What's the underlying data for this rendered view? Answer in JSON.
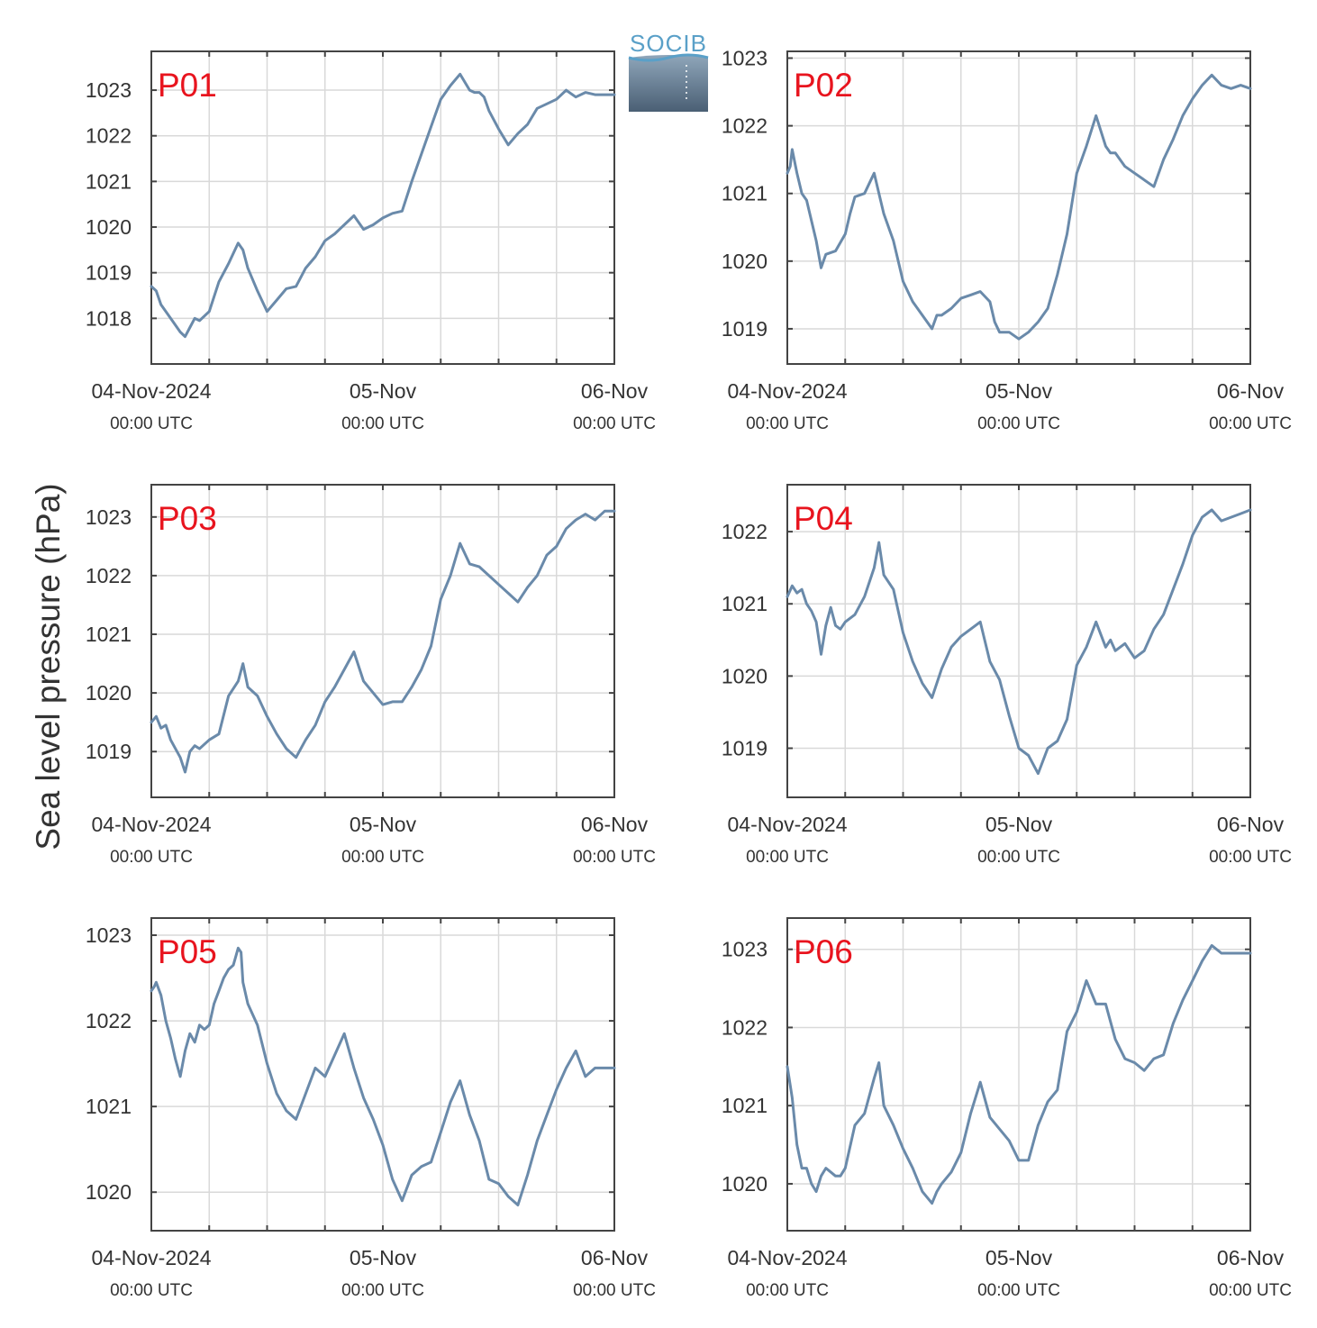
{
  "figure": {
    "ylabel": "Sea level pressure (hPa)",
    "logo": "SOCIB",
    "line_color": "#6a8aaa",
    "label_color": "#e8141e"
  },
  "chart_data": [
    {
      "type": "line",
      "panel": "P01",
      "title": "P01",
      "xlim": [
        0,
        48
      ],
      "ylim": [
        1017.0,
        1023.85
      ],
      "yticks": [
        1018,
        1019,
        1020,
        1021,
        1022,
        1023
      ],
      "xticklabels": [
        {
          "x": 0,
          "date": "04-Nov-2024",
          "time": "00:00 UTC"
        },
        {
          "x": 24,
          "date": "05-Nov",
          "time": "00:00 UTC"
        },
        {
          "x": 48,
          "date": "06-Nov",
          "time": "00:00 UTC"
        }
      ],
      "x": [
        0,
        0.5,
        1,
        2,
        3,
        3.5,
        4,
        4.5,
        5,
        6,
        7,
        8,
        9,
        9.5,
        10,
        11,
        12,
        13,
        14,
        15,
        16,
        17,
        18,
        19,
        20,
        21,
        22,
        23,
        24,
        25,
        26,
        27,
        28,
        29,
        30,
        31,
        32,
        33,
        33.5,
        34,
        34.5,
        35,
        36,
        37,
        38,
        39,
        40,
        41,
        42,
        43,
        44,
        45,
        46,
        47,
        48
      ],
      "y": [
        1018.7,
        1018.6,
        1018.3,
        1018.0,
        1017.7,
        1017.6,
        1017.8,
        1018.0,
        1017.95,
        1018.15,
        1018.8,
        1019.2,
        1019.65,
        1019.5,
        1019.1,
        1018.6,
        1018.15,
        1018.4,
        1018.65,
        1018.7,
        1019.1,
        1019.35,
        1019.7,
        1019.85,
        1020.05,
        1020.25,
        1019.95,
        1020.05,
        1020.2,
        1020.3,
        1020.35,
        1021.0,
        1021.6,
        1022.2,
        1022.8,
        1023.1,
        1023.35,
        1023.0,
        1022.95,
        1022.95,
        1022.85,
        1022.55,
        1022.15,
        1021.8,
        1022.05,
        1022.25,
        1022.6,
        1022.7,
        1022.8,
        1023.0,
        1022.85,
        1022.95,
        1022.9,
        1022.9,
        1022.9
      ]
    },
    {
      "type": "line",
      "panel": "P02",
      "title": "P02",
      "xlim": [
        0,
        48
      ],
      "ylim": [
        1018.48,
        1023.1
      ],
      "yticks": [
        1019,
        1020,
        1021,
        1022,
        1023
      ],
      "xticklabels": [
        {
          "x": 0,
          "date": "04-Nov-2024",
          "time": "00:00 UTC"
        },
        {
          "x": 24,
          "date": "05-Nov",
          "time": "00:00 UTC"
        },
        {
          "x": 48,
          "date": "06-Nov",
          "time": "00:00 UTC"
        }
      ],
      "x": [
        0,
        0.3,
        0.5,
        1,
        1.5,
        2,
        3,
        3.5,
        4,
        5,
        6,
        6.5,
        7,
        8,
        9,
        9.5,
        10,
        11,
        12,
        13,
        14,
        15,
        15.5,
        16,
        17,
        18,
        19,
        20,
        21,
        21.5,
        22,
        23,
        24,
        25,
        26,
        27,
        28,
        29,
        30,
        31,
        32,
        33,
        33.5,
        34,
        35,
        36,
        37,
        38,
        39,
        40,
        41,
        42,
        43,
        44,
        45,
        46,
        47,
        48
      ],
      "y": [
        1021.3,
        1021.4,
        1021.65,
        1021.3,
        1021.0,
        1020.9,
        1020.3,
        1019.9,
        1020.1,
        1020.15,
        1020.4,
        1020.7,
        1020.95,
        1021.0,
        1021.3,
        1021.0,
        1020.7,
        1020.3,
        1019.7,
        1019.4,
        1019.2,
        1019.0,
        1019.2,
        1019.2,
        1019.3,
        1019.45,
        1019.5,
        1019.55,
        1019.4,
        1019.1,
        1018.95,
        1018.95,
        1018.85,
        1018.95,
        1019.1,
        1019.3,
        1019.8,
        1020.4,
        1021.3,
        1021.7,
        1022.15,
        1021.7,
        1021.6,
        1021.6,
        1021.4,
        1021.3,
        1021.2,
        1021.1,
        1021.5,
        1021.8,
        1022.15,
        1022.4,
        1022.6,
        1022.75,
        1022.6,
        1022.55,
        1022.6,
        1022.55
      ]
    },
    {
      "type": "line",
      "panel": "P03",
      "title": "P03",
      "xlim": [
        0,
        48
      ],
      "ylim": [
        1018.22,
        1023.55
      ],
      "yticks": [
        1019,
        1020,
        1021,
        1022,
        1023
      ],
      "xticklabels": [
        {
          "x": 0,
          "date": "04-Nov-2024",
          "time": "00:00 UTC"
        },
        {
          "x": 24,
          "date": "05-Nov",
          "time": "00:00 UTC"
        },
        {
          "x": 48,
          "date": "06-Nov",
          "time": "00:00 UTC"
        }
      ],
      "x": [
        0,
        0.5,
        1,
        1.5,
        2,
        3,
        3.5,
        4,
        4.5,
        5,
        6,
        7,
        8,
        9,
        9.5,
        10,
        11,
        12,
        13,
        14,
        15,
        16,
        17,
        18,
        19,
        20,
        21,
        22,
        23,
        24,
        25,
        26,
        27,
        28,
        29,
        30,
        31,
        32,
        33,
        34,
        35,
        36,
        37,
        38,
        39,
        40,
        41,
        42,
        43,
        44,
        45,
        46,
        47,
        48
      ],
      "y": [
        1019.5,
        1019.6,
        1019.4,
        1019.45,
        1019.2,
        1018.9,
        1018.65,
        1019.0,
        1019.1,
        1019.05,
        1019.2,
        1019.3,
        1019.95,
        1020.2,
        1020.5,
        1020.1,
        1019.95,
        1019.6,
        1019.3,
        1019.05,
        1018.9,
        1019.2,
        1019.45,
        1019.85,
        1020.1,
        1020.4,
        1020.7,
        1020.2,
        1020.0,
        1019.8,
        1019.85,
        1019.85,
        1020.1,
        1020.4,
        1020.8,
        1021.6,
        1022.0,
        1022.55,
        1022.2,
        1022.15,
        1022.0,
        1021.85,
        1021.7,
        1021.55,
        1021.8,
        1022.0,
        1022.35,
        1022.5,
        1022.8,
        1022.95,
        1023.05,
        1022.95,
        1023.1,
        1023.1
      ]
    },
    {
      "type": "line",
      "panel": "P04",
      "title": "P04",
      "xlim": [
        0,
        48
      ],
      "ylim": [
        1018.32,
        1022.65
      ],
      "yticks": [
        1019,
        1020,
        1021,
        1022
      ],
      "xticklabels": [
        {
          "x": 0,
          "date": "04-Nov-2024",
          "time": "00:00 UTC"
        },
        {
          "x": 24,
          "date": "05-Nov",
          "time": "00:00 UTC"
        },
        {
          "x": 48,
          "date": "06-Nov",
          "time": "00:00 UTC"
        }
      ],
      "x": [
        0,
        0.5,
        1,
        1.5,
        2,
        2.5,
        3,
        3.5,
        4,
        4.5,
        5,
        5.5,
        6,
        7,
        8,
        9,
        9.5,
        10,
        11,
        12,
        13,
        14,
        15,
        16,
        17,
        18,
        19,
        20,
        21,
        22,
        23,
        24,
        25,
        26,
        27,
        28,
        29,
        30,
        31,
        32,
        33,
        33.5,
        34,
        35,
        35.5,
        36,
        37,
        38,
        39,
        40,
        41,
        42,
        43,
        44,
        45,
        46,
        47,
        48
      ],
      "y": [
        1021.1,
        1021.25,
        1021.15,
        1021.2,
        1021.0,
        1020.9,
        1020.75,
        1020.3,
        1020.7,
        1020.95,
        1020.7,
        1020.65,
        1020.75,
        1020.85,
        1021.1,
        1021.5,
        1021.85,
        1021.4,
        1021.2,
        1020.6,
        1020.2,
        1019.9,
        1019.7,
        1020.1,
        1020.4,
        1020.55,
        1020.65,
        1020.75,
        1020.2,
        1019.95,
        1019.45,
        1019.0,
        1018.9,
        1018.65,
        1019.0,
        1019.1,
        1019.4,
        1020.15,
        1020.4,
        1020.75,
        1020.4,
        1020.5,
        1020.35,
        1020.45,
        1020.35,
        1020.25,
        1020.35,
        1020.65,
        1020.85,
        1021.2,
        1021.55,
        1021.95,
        1022.2,
        1022.3,
        1022.15,
        1022.2,
        1022.25,
        1022.3
      ]
    },
    {
      "type": "line",
      "panel": "P05",
      "title": "P05",
      "xlim": [
        0,
        48
      ],
      "ylim": [
        1019.55,
        1023.2
      ],
      "yticks": [
        1020,
        1021,
        1022,
        1023
      ],
      "xticklabels": [
        {
          "x": 0,
          "date": "04-Nov-2024",
          "time": "00:00 UTC"
        },
        {
          "x": 24,
          "date": "05-Nov",
          "time": "00:00 UTC"
        },
        {
          "x": 48,
          "date": "06-Nov",
          "time": "00:00 UTC"
        }
      ],
      "x": [
        0,
        0.3,
        0.5,
        1,
        1.5,
        2,
        2.5,
        3,
        3.5,
        4,
        4.5,
        5,
        5.5,
        6,
        6.5,
        7,
        7.5,
        8,
        8.5,
        9,
        9.3,
        9.5,
        10,
        11,
        12,
        13,
        14,
        15,
        16,
        17,
        18,
        19,
        20,
        21,
        22,
        23,
        24,
        25,
        26,
        27,
        28,
        29,
        30,
        31,
        32,
        33,
        34,
        35,
        36,
        37,
        38,
        39,
        40,
        41,
        42,
        43,
        44,
        45,
        46,
        47,
        48
      ],
      "y": [
        1022.35,
        1022.4,
        1022.45,
        1022.3,
        1022.0,
        1021.8,
        1021.55,
        1021.35,
        1021.65,
        1021.85,
        1021.75,
        1021.95,
        1021.9,
        1021.95,
        1022.2,
        1022.35,
        1022.5,
        1022.6,
        1022.65,
        1022.85,
        1022.8,
        1022.45,
        1022.2,
        1021.95,
        1021.5,
        1021.15,
        1020.95,
        1020.85,
        1021.15,
        1021.45,
        1021.35,
        1021.6,
        1021.85,
        1021.45,
        1021.1,
        1020.85,
        1020.55,
        1020.15,
        1019.9,
        1020.2,
        1020.3,
        1020.35,
        1020.7,
        1021.05,
        1021.3,
        1020.9,
        1020.6,
        1020.15,
        1020.1,
        1019.95,
        1019.85,
        1020.2,
        1020.6,
        1020.9,
        1021.2,
        1021.45,
        1021.65,
        1021.35,
        1021.45,
        1021.45,
        1021.45
      ]
    },
    {
      "type": "line",
      "panel": "P06",
      "title": "P06",
      "xlim": [
        0,
        48
      ],
      "ylim": [
        1019.4,
        1023.4
      ],
      "yticks": [
        1020,
        1021,
        1022,
        1023
      ],
      "xticklabels": [
        {
          "x": 0,
          "date": "04-Nov-2024",
          "time": "00:00 UTC"
        },
        {
          "x": 24,
          "date": "05-Nov",
          "time": "00:00 UTC"
        },
        {
          "x": 48,
          "date": "06-Nov",
          "time": "00:00 UTC"
        }
      ],
      "x": [
        0,
        0.5,
        1,
        1.5,
        2,
        2.5,
        3,
        3.5,
        4,
        4.5,
        5,
        5.5,
        6,
        7,
        8,
        9,
        9.5,
        10,
        11,
        12,
        13,
        14,
        15,
        15.5,
        16,
        17,
        18,
        19,
        20,
        21,
        22,
        23,
        24,
        25,
        26,
        27,
        28,
        29,
        30,
        31,
        32,
        33,
        34,
        35,
        36,
        37,
        38,
        39,
        40,
        41,
        42,
        43,
        44,
        45,
        46,
        47,
        48
      ],
      "y": [
        1021.5,
        1021.1,
        1020.5,
        1020.2,
        1020.2,
        1020.0,
        1019.9,
        1020.1,
        1020.2,
        1020.15,
        1020.1,
        1020.1,
        1020.2,
        1020.75,
        1020.9,
        1021.35,
        1021.55,
        1021.0,
        1020.75,
        1020.45,
        1020.2,
        1019.9,
        1019.75,
        1019.9,
        1020.0,
        1020.15,
        1020.4,
        1020.9,
        1021.3,
        1020.85,
        1020.7,
        1020.55,
        1020.3,
        1020.3,
        1020.75,
        1021.05,
        1021.2,
        1021.95,
        1022.2,
        1022.6,
        1022.3,
        1022.3,
        1021.85,
        1021.6,
        1021.55,
        1021.45,
        1021.6,
        1021.65,
        1022.05,
        1022.35,
        1022.6,
        1022.85,
        1023.05,
        1022.95,
        1022.95,
        1022.95,
        1022.95
      ]
    }
  ]
}
